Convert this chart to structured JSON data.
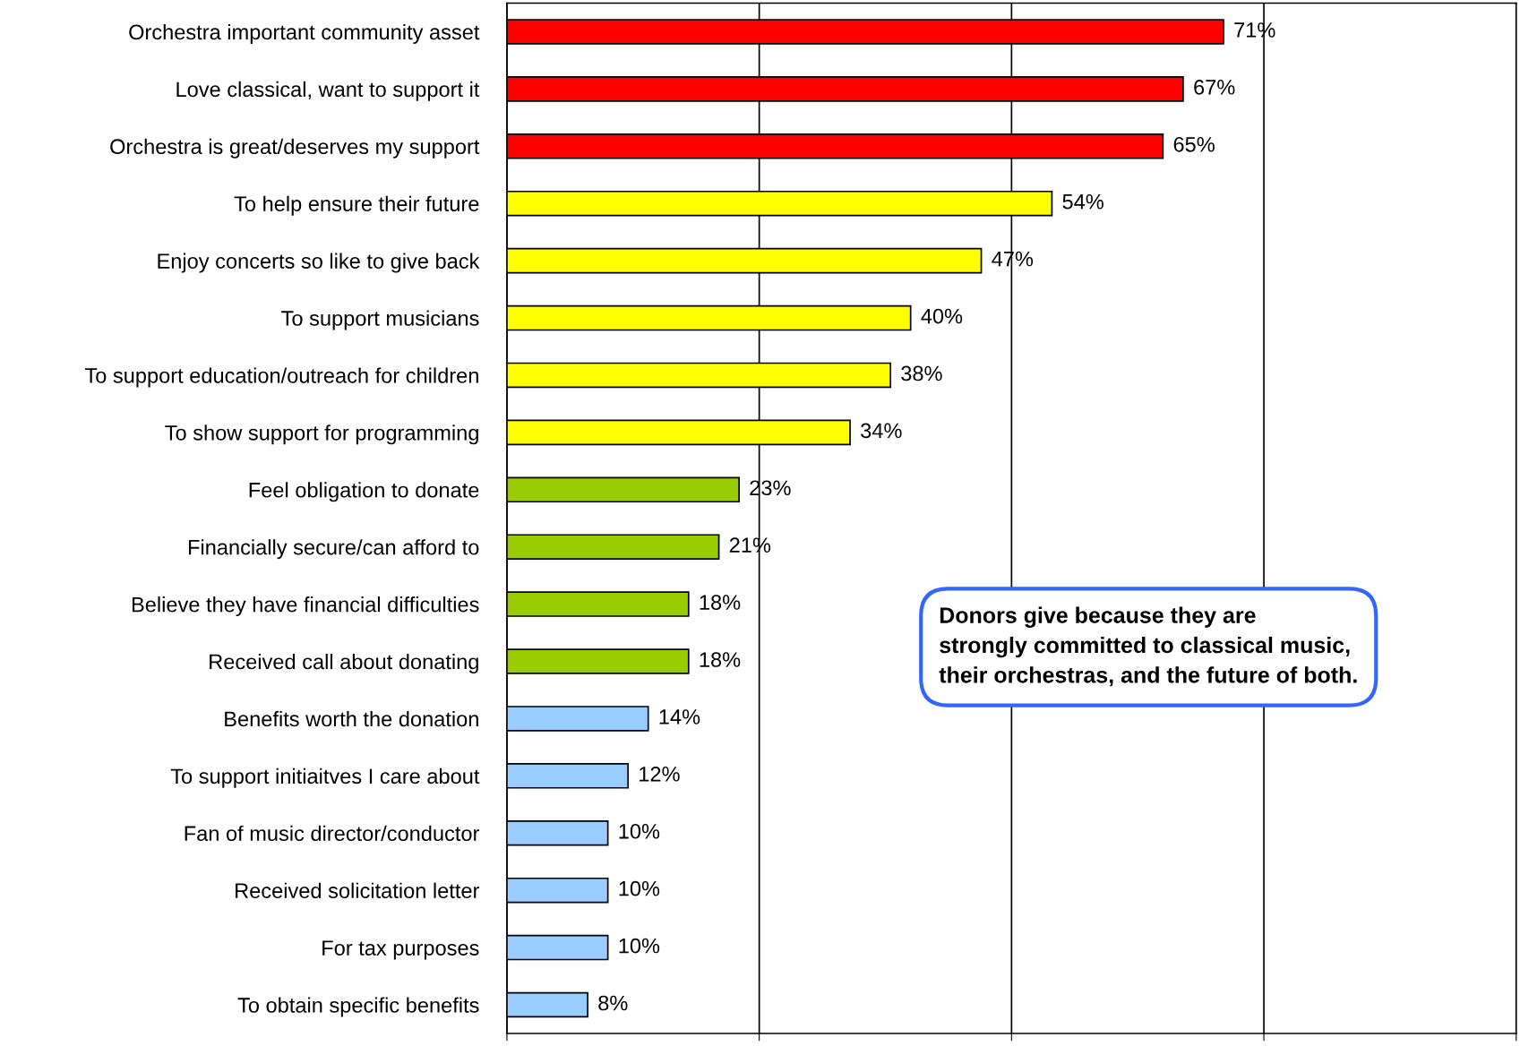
{
  "chart_data": {
    "type": "bar",
    "orientation": "horizontal",
    "categories": [
      "Orchestra important community asset",
      "Love classical, want to support it",
      "Orchestra is great/deserves my support",
      "To help ensure their future",
      "Enjoy concerts so like to give back",
      "To support musicians",
      "To support education/outreach for children",
      "To show support for programming",
      "Feel obligation to donate",
      "Financially secure/can afford to",
      "Believe they have financial difficulties",
      "Received call about donating",
      "Benefits worth the donation",
      "To support initiaitves I care about",
      "Fan of music director/conductor",
      "Received solicitation letter",
      "For tax purposes",
      "To obtain specific benefits"
    ],
    "values": [
      71,
      67,
      65,
      54,
      47,
      40,
      38,
      34,
      23,
      21,
      18,
      18,
      14,
      12,
      10,
      10,
      10,
      8
    ],
    "value_labels": [
      "71%",
      "67%",
      "65%",
      "54%",
      "47%",
      "40%",
      "38%",
      "34%",
      "23%",
      "21%",
      "18%",
      "18%",
      "14%",
      "12%",
      "10%",
      "10%",
      "10%",
      "8%"
    ],
    "colors": [
      "#ff0000",
      "#ff0000",
      "#ff0000",
      "#ffff00",
      "#ffff00",
      "#ffff00",
      "#ffff00",
      "#ffff00",
      "#99cc00",
      "#99cc00",
      "#99cc00",
      "#99cc00",
      "#99ccff",
      "#99ccff",
      "#99ccff",
      "#99ccff",
      "#99ccff",
      "#99ccff"
    ],
    "xlim": [
      0,
      100
    ],
    "xticks": [
      {
        "value": 0,
        "label": null
      },
      {
        "value": 25,
        "label": null
      },
      {
        "value": 50,
        "label": null
      },
      {
        "value": 75,
        "label": null
      },
      {
        "value": 100,
        "label": null
      }
    ],
    "tick_labels": "y",
    "grid": "x",
    "legend": false,
    "annotations": [
      "Donors give because they are\nstrongly committed to classical music,\ntheir orchestras, and the future of both."
    ]
  }
}
